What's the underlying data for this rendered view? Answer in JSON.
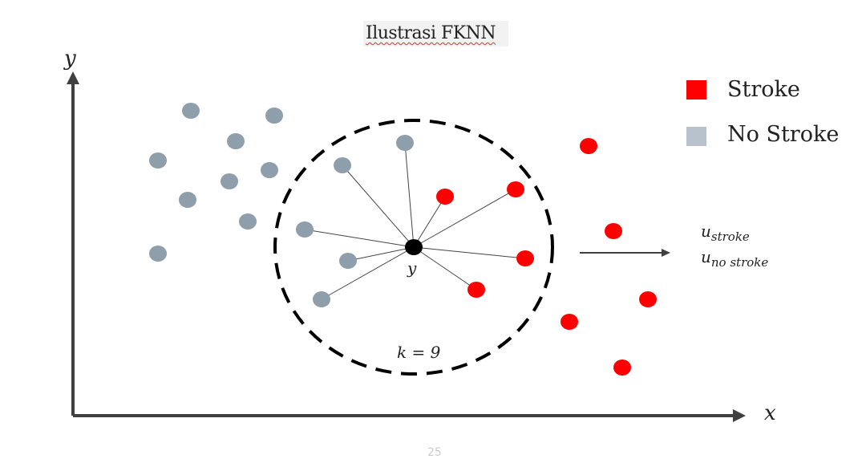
{
  "title": "Ilustrasi FKNN",
  "axes": {
    "x_label": "x",
    "y_label": "y"
  },
  "legend": [
    {
      "label": "Stroke",
      "color": "#ff0000"
    },
    {
      "label": "No Stroke",
      "color": "#b8c2cc"
    }
  ],
  "query_label": "y",
  "k_label": "k = 9",
  "output": {
    "u_symbol": "u",
    "stroke_sub": "stroke",
    "no_stroke_sub": "no stroke"
  },
  "page_number": "25",
  "colors": {
    "stroke": "#ff0000",
    "no_stroke": "#8e9eab",
    "axis": "#404040",
    "query": "#000000"
  }
}
